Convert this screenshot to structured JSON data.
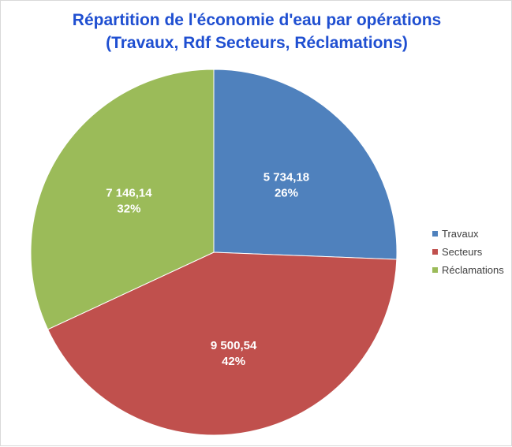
{
  "chart_data": {
    "type": "pie",
    "title": "Répartition de l'économie d'eau par opérations",
    "subtitle": "(Travaux, Rdf Secteurs, Réclamations)",
    "categories": [
      "Travaux",
      "Secteurs",
      "Réclamations"
    ],
    "values": [
      5734.18,
      9500.54,
      7146.14
    ],
    "value_labels": [
      "5 734,18",
      "9 500,54",
      "7 146,14"
    ],
    "percent_labels": [
      "26%",
      "42%",
      "32%"
    ],
    "colors": [
      "#4f81bd",
      "#c0504d",
      "#9bbb59"
    ],
    "legend_position": "right",
    "start_angle_deg": 0,
    "direction": "clockwise"
  }
}
